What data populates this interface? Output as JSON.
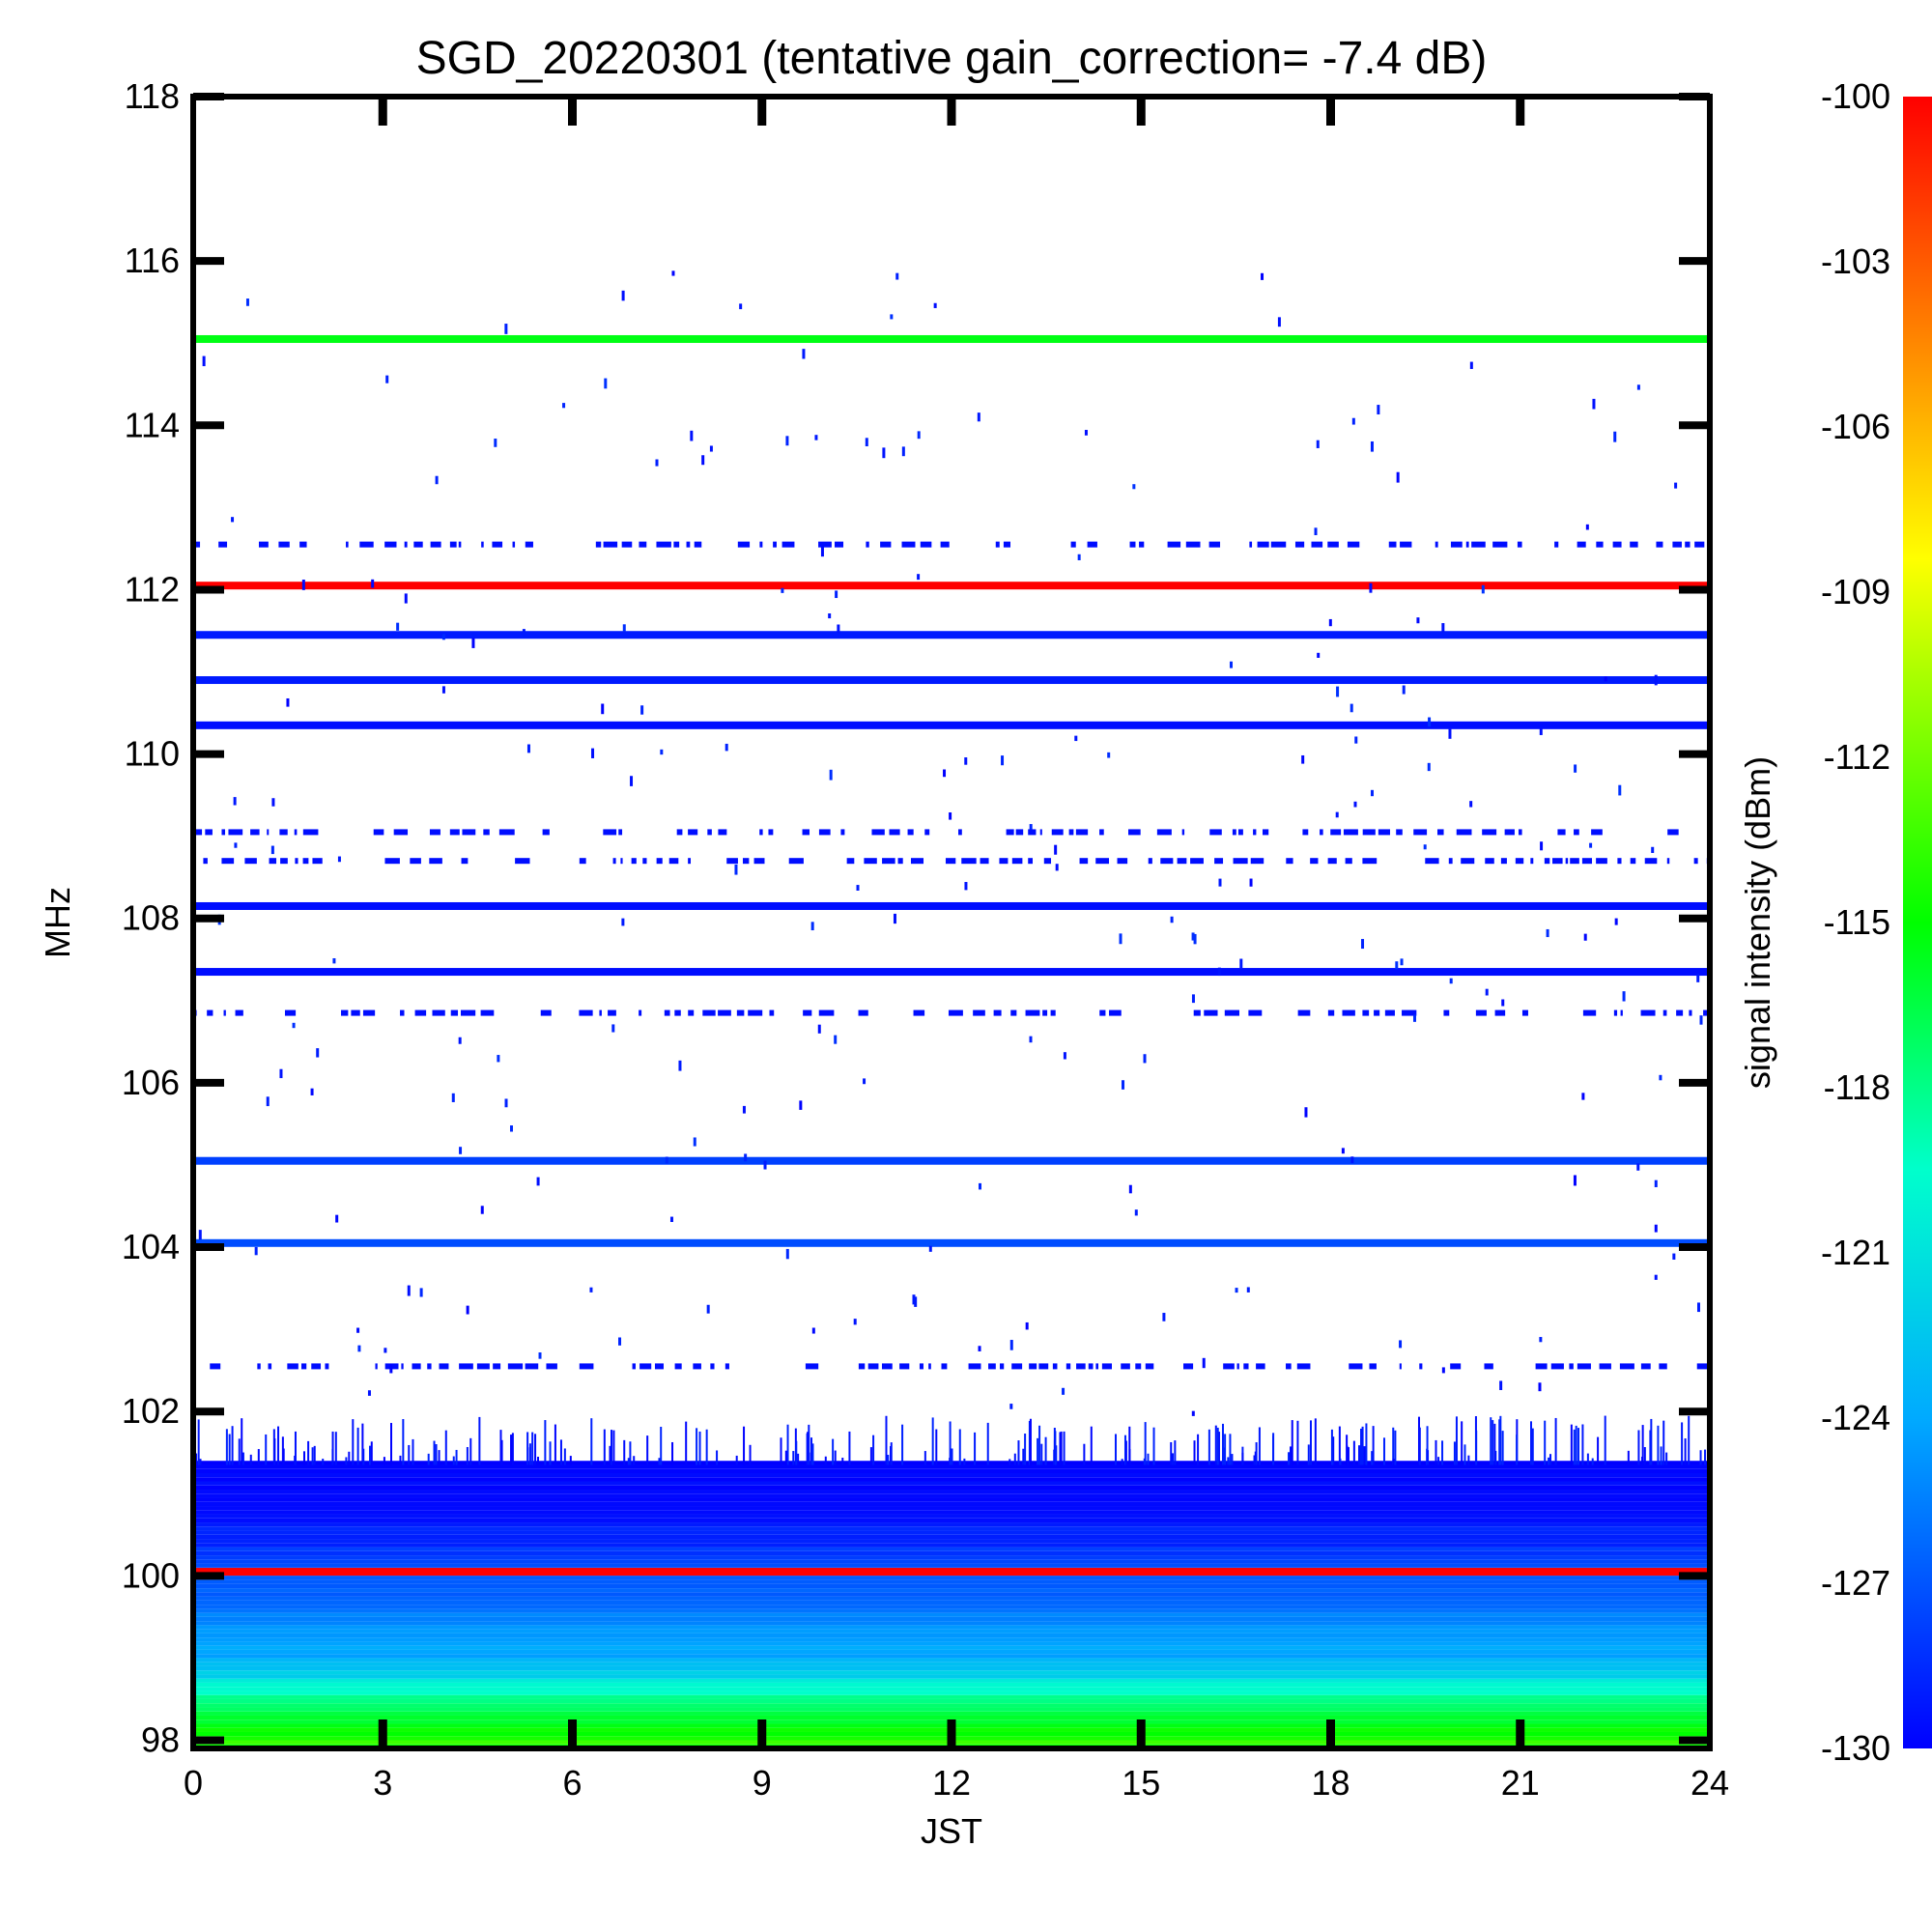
{
  "chart_data": {
    "type": "heatmap",
    "title": "SGD_20220301 (tentative gain_correction= -7.4 dB)",
    "xlabel": "JST",
    "ylabel": "MHz",
    "colorbar_label": "signal intensity (dBm)",
    "xlim": [
      0,
      24
    ],
    "ylim": [
      97.9,
      118
    ],
    "x_ticks": [
      0,
      3,
      6,
      9,
      12,
      15,
      18,
      21,
      24
    ],
    "x_tick_labels": [
      "0",
      "3",
      "6",
      "9",
      "12",
      "15",
      "18",
      "21",
      "24"
    ],
    "y_ticks": [
      98,
      100,
      102,
      104,
      106,
      108,
      110,
      112,
      114,
      116,
      118
    ],
    "y_tick_labels": [
      "98",
      "100",
      "102",
      "104",
      "106",
      "108",
      "110",
      "112",
      "114",
      "116",
      "118"
    ],
    "colorbar_range": [
      -130,
      -100
    ],
    "colorbar_ticks": [
      -100,
      -103,
      -106,
      -109,
      -112,
      -115,
      -118,
      -121,
      -124,
      -127,
      -130
    ],
    "colorbar_tick_labels": [
      "-100",
      "-103",
      "-106",
      "-109",
      "-112",
      "-115",
      "-118",
      "-121",
      "-124",
      "-127",
      "-130"
    ],
    "colormap": [
      "#0000ff",
      "#0055ff",
      "#00aaff",
      "#00ffcc",
      "#00ff00",
      "#aaff00",
      "#ffff00",
      "#ffaa00",
      "#ff5500",
      "#ff0000"
    ],
    "continuous_lines": [
      {
        "freq_mhz": 115.05,
        "dbm": -117
      },
      {
        "freq_mhz": 112.05,
        "dbm": -100
      },
      {
        "freq_mhz": 111.45,
        "dbm": -129
      },
      {
        "freq_mhz": 110.9,
        "dbm": -129
      },
      {
        "freq_mhz": 110.35,
        "dbm": -129.5
      },
      {
        "freq_mhz": 108.15,
        "dbm": -129.5
      },
      {
        "freq_mhz": 107.35,
        "dbm": -129.5
      },
      {
        "freq_mhz": 105.05,
        "dbm": -127.5
      },
      {
        "freq_mhz": 104.05,
        "dbm": -127
      },
      {
        "freq_mhz": 100.05,
        "dbm": -100
      }
    ],
    "intermittent_lines": [
      {
        "freq_mhz": 112.55,
        "dbm": -129.5
      },
      {
        "freq_mhz": 109.05,
        "dbm": -129.5
      },
      {
        "freq_mhz": 108.7,
        "dbm": -129.5
      },
      {
        "freq_mhz": 106.85,
        "dbm": -129.5
      },
      {
        "freq_mhz": 102.55,
        "dbm": -129.5
      }
    ],
    "noise_floor_band": [
      {
        "freq_mhz": 101.2,
        "dbm": -130
      },
      {
        "freq_mhz": 100.8,
        "dbm": -129.5
      },
      {
        "freq_mhz": 100.4,
        "dbm": -128.5
      },
      {
        "freq_mhz": 100.1,
        "dbm": -127
      },
      {
        "freq_mhz": 99.8,
        "dbm": -126.5
      },
      {
        "freq_mhz": 99.5,
        "dbm": -125
      },
      {
        "freq_mhz": 99.2,
        "dbm": -124
      },
      {
        "freq_mhz": 98.9,
        "dbm": -123
      },
      {
        "freq_mhz": 98.6,
        "dbm": -120
      },
      {
        "freq_mhz": 98.3,
        "dbm": -118
      },
      {
        "freq_mhz": 98.0,
        "dbm": -116
      }
    ]
  }
}
